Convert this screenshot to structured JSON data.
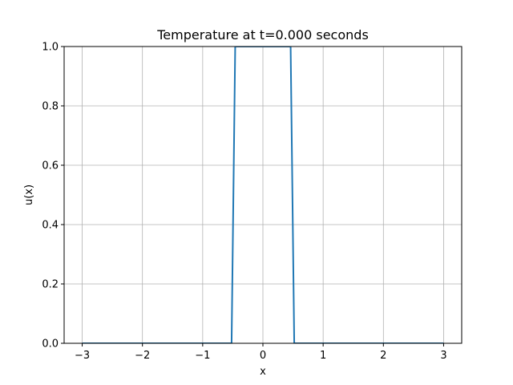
{
  "chart_data": {
    "type": "line",
    "title": "Temperature at t=0.000 seconds",
    "xlabel": "x",
    "ylabel": "u(x)",
    "xlim": [
      -3.3,
      3.3
    ],
    "ylim": [
      0,
      1
    ],
    "xticks": [
      -3,
      -2,
      -1,
      0,
      1,
      2,
      3
    ],
    "xtick_labels": [
      "−3",
      "−2",
      "−1",
      "0",
      "1",
      "2",
      "3"
    ],
    "yticks": [
      0,
      0.2,
      0.4,
      0.6,
      0.8,
      1.0
    ],
    "ytick_labels": [
      "0.0",
      "0.2",
      "0.4",
      "0.6",
      "0.8",
      "1.0"
    ],
    "grid": true,
    "series": [
      {
        "color": "#1f77b4",
        "x": [
          -3,
          -0.52,
          -0.46,
          0.46,
          0.52,
          3
        ],
        "y": [
          0,
          0,
          1.0,
          1.0,
          0,
          0
        ]
      }
    ]
  }
}
